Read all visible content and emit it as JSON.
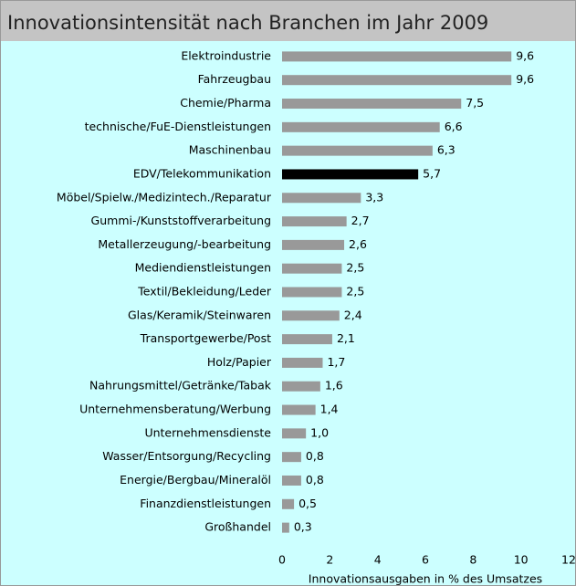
{
  "chart_data": {
    "type": "bar",
    "orientation": "horizontal",
    "title": "Innovationsintensität nach Branchen im Jahr 2009",
    "x_label": "Innovationsausgaben in % des Umsatzes",
    "categories": [
      "Elektroindustrie",
      "Fahrzeugbau",
      "Chemie/Pharma",
      "technische/FuE-Dienstleistungen",
      "Maschinenbau",
      "EDV/Telekommunikation",
      "Möbel/Spielw./Medizintech./Reparatur",
      "Gummi-/Kunststoffverarbeitung",
      "Metallerzeugung/-bearbeitung",
      "Mediendienstleistungen",
      "Textil/Bekleidung/Leder",
      "Glas/Keramik/Steinwaren",
      "Transportgewerbe/Post",
      "Holz/Papier",
      "Nahrungsmittel/Getränke/Tabak",
      "Unternehmensberatung/Werbung",
      "Unternehmensdienste",
      "Wasser/Entsorgung/Recycling",
      "Energie/Bergbau/Mineralöl",
      "Finanzdienstleistungen",
      "Großhandel"
    ],
    "values": [
      9.6,
      9.6,
      7.5,
      6.6,
      6.3,
      5.7,
      3.3,
      2.7,
      2.6,
      2.5,
      2.5,
      2.4,
      2.1,
      1.7,
      1.6,
      1.4,
      1.0,
      0.8,
      0.8,
      0.5,
      0.3
    ],
    "value_labels": [
      "9,6",
      "9,6",
      "7,5",
      "6,6",
      "6,3",
      "5,7",
      "3,3",
      "2,7",
      "2,6",
      "2,5",
      "2,5",
      "2,4",
      "2,1",
      "1,7",
      "1,6",
      "1,4",
      "1,0",
      "0,8",
      "0,8",
      "0,5",
      "0,3"
    ],
    "colors": [
      "#999999",
      "#999999",
      "#999999",
      "#999999",
      "#999999",
      "#000000",
      "#999999",
      "#999999",
      "#999999",
      "#999999",
      "#999999",
      "#999999",
      "#999999",
      "#999999",
      "#999999",
      "#999999",
      "#999999",
      "#999999",
      "#999999",
      "#999999",
      "#999999"
    ],
    "xlim": [
      0,
      12
    ],
    "xticks": [
      0,
      2,
      4,
      6,
      8,
      10,
      12
    ],
    "grid": false
  }
}
